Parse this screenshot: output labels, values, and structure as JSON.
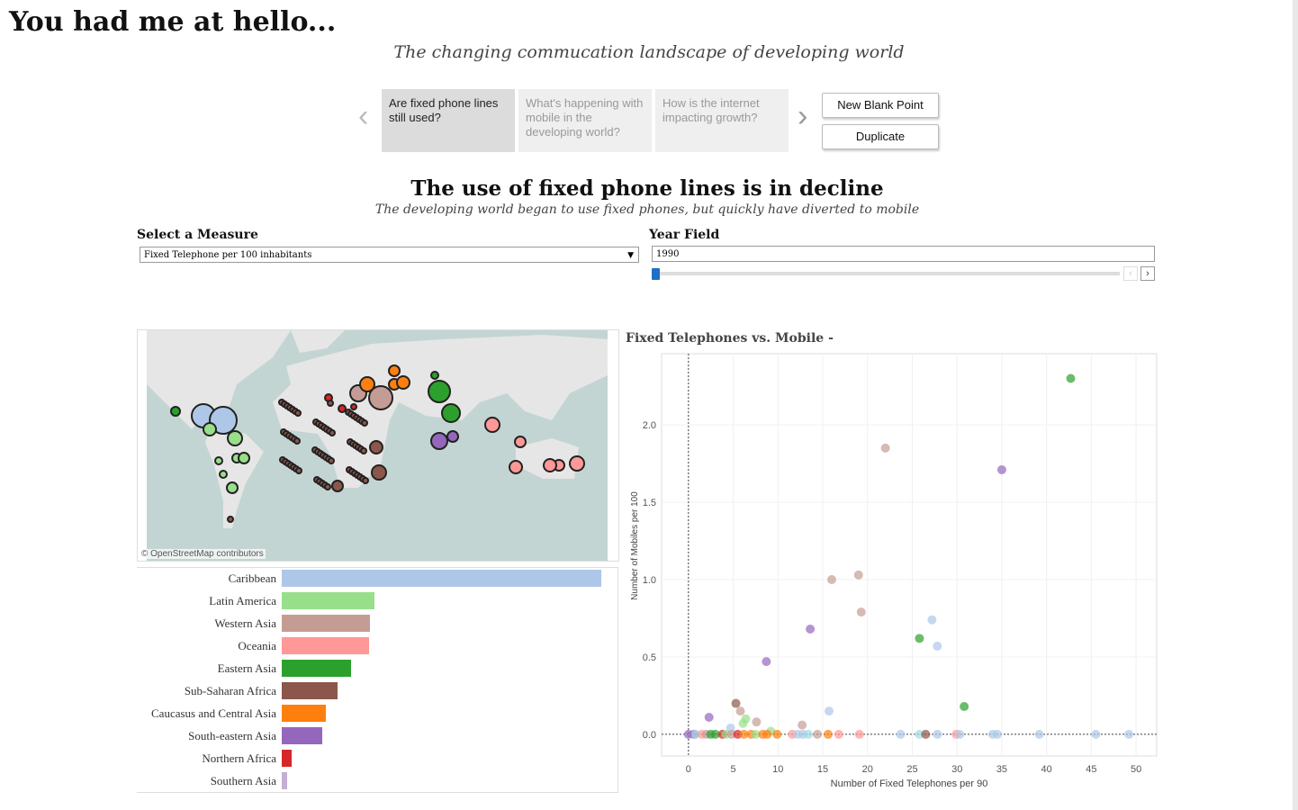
{
  "header": {
    "title": "You had me at hello...",
    "subtitle": "The changing commucation landscape of developing world"
  },
  "story": {
    "points": [
      {
        "label": "Are fixed phone lines still used?",
        "active": true
      },
      {
        "label": "What's happening with mobile in the developing world?",
        "active": false
      },
      {
        "label": "How is the internet impacting growth?",
        "active": false
      }
    ],
    "prev_icon": "chevron-left-icon",
    "next_icon": "chevron-right-icon",
    "new_blank_label": "New Blank Point",
    "duplicate_label": "Duplicate"
  },
  "sheet": {
    "title": "The use of fixed phone lines is in decline",
    "subtitle": "The developing world began to use fixed phones, but quickly have diverted to mobile"
  },
  "filters": {
    "measure_label": "Select a Measure",
    "measure_value": "Fixed Telephone per 100 inhabitants",
    "year_label": "Year Field",
    "year_value": "1990",
    "year_slider_fraction": 0
  },
  "map": {
    "attribution": "© OpenStreetMap contributors",
    "ocean": "#c3d5d3",
    "land": "#e6e6e6"
  },
  "chart_data": [
    {
      "type": "bar",
      "title": "",
      "categories": [
        "Caribbean",
        "Latin America",
        "Western Asia",
        "Oceania",
        "Eastern Asia",
        "Sub-Saharan Africa",
        "Caucasus and Central Asia",
        "South-eastern Asia",
        "Northern Africa",
        "Southern Asia"
      ],
      "values": [
        100,
        29,
        27.5,
        27.3,
        21.7,
        17.5,
        13.8,
        12.7,
        3.1,
        1.7
      ],
      "colors": [
        "#aec7e8",
        "#98df8a",
        "#c49c94",
        "#ff9896",
        "#2ca02c",
        "#8c564b",
        "#ff7f0e",
        "#9467bd",
        "#d62728",
        "#c5b0d5"
      ]
    },
    {
      "type": "scatter",
      "title": "Fixed Telephones vs. Mobile -",
      "xlabel": "Number of Fixed Telephones per 90",
      "ylabel": "Number of Mobiles per 100",
      "xlim": [
        -3,
        52.3
      ],
      "ylim": [
        -0.14,
        2.46
      ],
      "xticks": [
        "0",
        "5",
        "10",
        "15",
        "20",
        "25",
        "30",
        "35",
        "40",
        "45",
        "50"
      ],
      "yticks": [
        "0.0",
        "0.5",
        "1.0",
        "1.5",
        "2.0"
      ],
      "points": [
        [
          42.7,
          2.3,
          4
        ],
        [
          22,
          1.85,
          2
        ],
        [
          35,
          1.71,
          7
        ],
        [
          16,
          1.0,
          2
        ],
        [
          19,
          1.03,
          2
        ],
        [
          19.3,
          0.79,
          2
        ],
        [
          13.6,
          0.68,
          7
        ],
        [
          27.2,
          0.74,
          0
        ],
        [
          27.8,
          0.57,
          0
        ],
        [
          25.8,
          0.62,
          4
        ],
        [
          8.7,
          0.47,
          7
        ],
        [
          30.8,
          0.18,
          4
        ],
        [
          15.7,
          0.15,
          0
        ],
        [
          2.3,
          0.11,
          7
        ],
        [
          5.3,
          0.2,
          5
        ],
        [
          5.8,
          0.15,
          2
        ],
        [
          6.4,
          0.1,
          1
        ],
        [
          6.1,
          0.07,
          1
        ],
        [
          7.6,
          0.08,
          2
        ],
        [
          12.7,
          0.06,
          2
        ],
        [
          4.7,
          0.04,
          0
        ],
        [
          9.2,
          0.02,
          1
        ],
        [
          0,
          0,
          7
        ],
        [
          0.6,
          0,
          7
        ],
        [
          0.8,
          0,
          9
        ],
        [
          1.5,
          0,
          3
        ],
        [
          2,
          0,
          2
        ],
        [
          2.5,
          0,
          4
        ],
        [
          3,
          0,
          4
        ],
        [
          3.8,
          0,
          8
        ],
        [
          4.2,
          0,
          1
        ],
        [
          4.8,
          0,
          2
        ],
        [
          5.5,
          0,
          8
        ],
        [
          6.2,
          0,
          6
        ],
        [
          7,
          0,
          6
        ],
        [
          7.5,
          0,
          1
        ],
        [
          8.3,
          0,
          6
        ],
        [
          8.8,
          0,
          6
        ],
        [
          9.9,
          0,
          6
        ],
        [
          11.6,
          0,
          3
        ],
        [
          12.2,
          0,
          0
        ],
        [
          12.8,
          0,
          0
        ],
        [
          13.4,
          0,
          9
        ],
        [
          14.4,
          0,
          2
        ],
        [
          15.6,
          0,
          6
        ],
        [
          16.8,
          0,
          3
        ],
        [
          19.1,
          0,
          3
        ],
        [
          23.7,
          0,
          0
        ],
        [
          25.8,
          0,
          9
        ],
        [
          26.5,
          0,
          5
        ],
        [
          27.8,
          0,
          0
        ],
        [
          29.9,
          0,
          3
        ],
        [
          30.3,
          0,
          0
        ],
        [
          34,
          0,
          0
        ],
        [
          34.5,
          0,
          0
        ],
        [
          39.2,
          0,
          0
        ],
        [
          45.5,
          0,
          0
        ],
        [
          49.2,
          0,
          0
        ]
      ],
      "colors": [
        "#aec7e8",
        "#98df8a",
        "#c49c94",
        "#ff9896",
        "#2ca02c",
        "#8c564b",
        "#ff7f0e",
        "#9467bd",
        "#d62728",
        "#9edae5"
      ]
    }
  ]
}
